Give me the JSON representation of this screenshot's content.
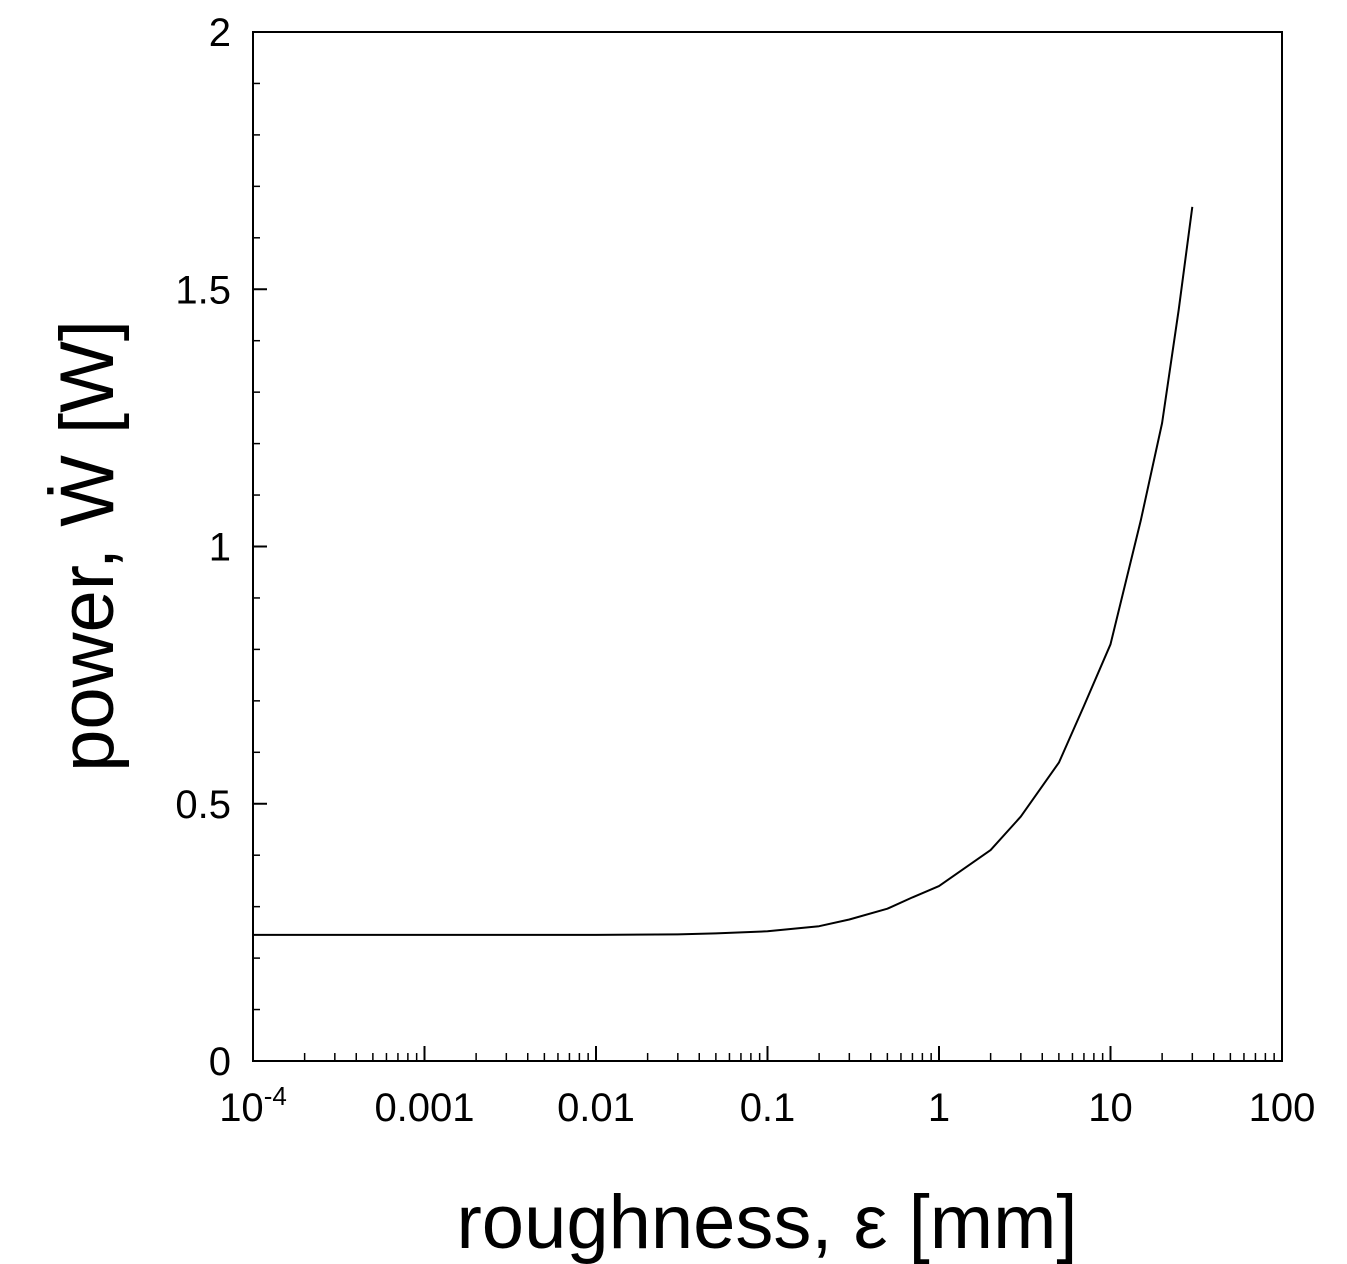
{
  "chart_data": {
    "type": "line",
    "title": "",
    "xlabel": "roughness, ε [mm]",
    "ylabel": "power, Ẇ [W]",
    "xscale": "log",
    "xlim": [
      0.0001,
      100
    ],
    "ylim": [
      0,
      2
    ],
    "grid": false,
    "x_ticks": [
      {
        "value": 0.0001,
        "base": "10",
        "exp": "-4"
      },
      {
        "value": 0.001,
        "label": "0.001"
      },
      {
        "value": 0.01,
        "label": "0.01"
      },
      {
        "value": 0.1,
        "label": "0.1"
      },
      {
        "value": 1,
        "label": "1"
      },
      {
        "value": 10,
        "label": "10"
      },
      {
        "value": 100,
        "label": "100"
      }
    ],
    "y_ticks": [
      {
        "value": 0,
        "label": "0"
      },
      {
        "value": 0.5,
        "label": "0.5"
      },
      {
        "value": 1,
        "label": "1"
      },
      {
        "value": 1.5,
        "label": "1.5"
      },
      {
        "value": 2,
        "label": "2"
      }
    ],
    "series": [
      {
        "color": "#000000",
        "x": [
          0.0001,
          0.001,
          0.01,
          0.03,
          0.05,
          0.1,
          0.2,
          0.3,
          0.5,
          0.7,
          1,
          2,
          3,
          5,
          7,
          10,
          15,
          20,
          25,
          30
        ],
        "y": [
          0.245,
          0.245,
          0.245,
          0.246,
          0.248,
          0.252,
          0.262,
          0.275,
          0.296,
          0.318,
          0.34,
          0.41,
          0.475,
          0.58,
          0.69,
          0.81,
          1.05,
          1.24,
          1.46,
          1.66
        ]
      }
    ]
  }
}
